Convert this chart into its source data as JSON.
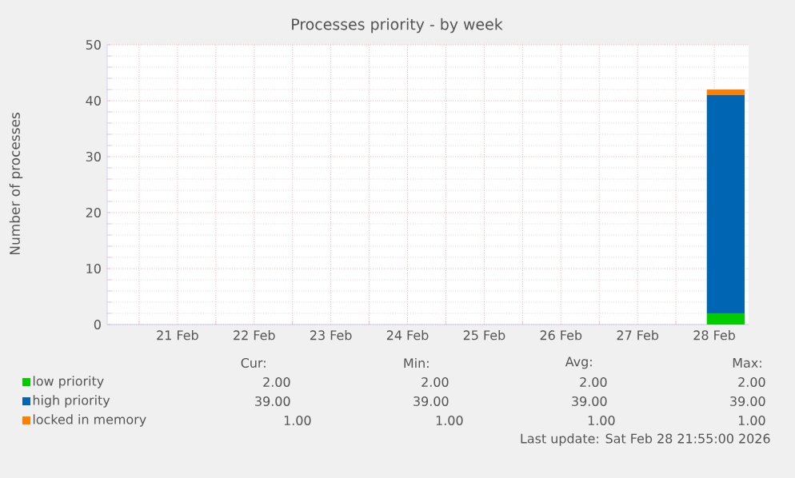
{
  "chart_data": {
    "type": "area",
    "stacked": true,
    "title": "Processes priority - by week",
    "ylabel": "Number of processes",
    "xlim": [
      "2026-02-20T14:00",
      "2026-02-28T22:45"
    ],
    "ylim": [
      0,
      50
    ],
    "yticks": [
      0,
      10,
      20,
      30,
      40,
      50
    ],
    "xticks": [
      {
        "value": "2026-02-21T00:00",
        "label": null
      },
      {
        "value": "2026-02-21T12:00",
        "label": "21 Feb"
      },
      {
        "value": "2026-02-22T00:00",
        "label": null
      },
      {
        "value": "2026-02-22T12:00",
        "label": "22 Feb"
      },
      {
        "value": "2026-02-23T00:00",
        "label": null
      },
      {
        "value": "2026-02-23T12:00",
        "label": "23 Feb"
      },
      {
        "value": "2026-02-24T00:00",
        "label": null
      },
      {
        "value": "2026-02-24T12:00",
        "label": "24 Feb"
      },
      {
        "value": "2026-02-25T00:00",
        "label": null
      },
      {
        "value": "2026-02-25T12:00",
        "label": "25 Feb"
      },
      {
        "value": "2026-02-26T00:00",
        "label": null
      },
      {
        "value": "2026-02-26T12:00",
        "label": "26 Feb"
      },
      {
        "value": "2026-02-27T00:00",
        "label": null
      },
      {
        "value": "2026-02-27T12:00",
        "label": "27 Feb"
      },
      {
        "value": "2026-02-28T00:00",
        "label": null
      },
      {
        "value": "2026-02-28T12:00",
        "label": "28 Feb"
      }
    ],
    "grid": true,
    "legend": "bottom left",
    "series": [
      {
        "name": "low priority",
        "color": "#00cc00",
        "x": [
          "2026-02-28T09:40",
          "2026-02-28T21:30"
        ],
        "values": [
          2,
          2
        ]
      },
      {
        "name": "high priority",
        "color": "#0066b3",
        "x": [
          "2026-02-28T09:40",
          "2026-02-28T21:30"
        ],
        "values": [
          39,
          39
        ]
      },
      {
        "name": "locked in memory",
        "color": "#ff8000",
        "x": [
          "2026-02-28T09:40",
          "2026-02-28T21:30"
        ],
        "values": [
          1,
          1
        ]
      }
    ],
    "annotations": [
      "Cur:",
      "Min:",
      "Avg:",
      "Max:",
      "2.00",
      "2.00",
      "2.00",
      "2.00",
      "39.00",
      "39.00",
      "39.00",
      "39.00",
      "1.00",
      "1.00",
      "1.00",
      "1.00",
      "Last update: Sat Feb 28 21:55:00 2026"
    ]
  }
}
